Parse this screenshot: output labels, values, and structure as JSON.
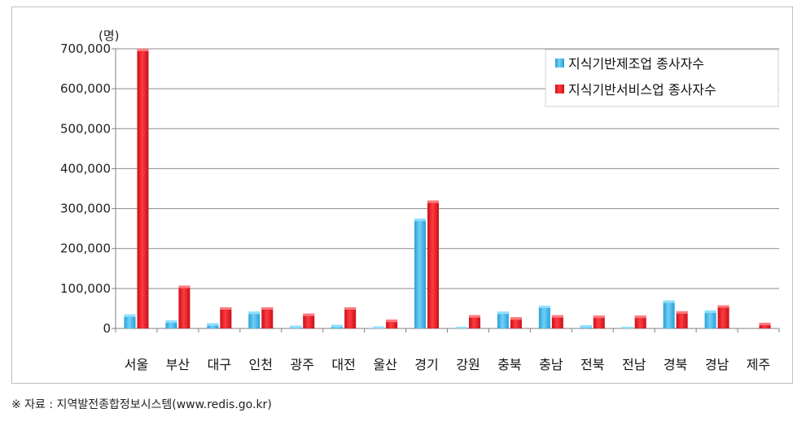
{
  "chart_data": {
    "type": "bar",
    "unit_label": "(명)",
    "categories": [
      "서울",
      "부산",
      "대구",
      "인천",
      "광주",
      "대전",
      "울산",
      "경기",
      "강원",
      "충북",
      "충남",
      "전북",
      "전남",
      "경북",
      "경남",
      "제주"
    ],
    "series": [
      {
        "name": "지식기반제조업 종사자수",
        "color": "#3fb4e6",
        "values": [
          35000,
          20000,
          13000,
          42000,
          7000,
          9000,
          5000,
          275000,
          4000,
          42000,
          57000,
          8000,
          4000,
          70000,
          45000,
          0
        ]
      },
      {
        "name": "지식기반서비스업 종사자수",
        "color": "#e8212a",
        "values": [
          700000,
          107000,
          53000,
          53000,
          37000,
          53000,
          22000,
          320000,
          33000,
          28000,
          33000,
          32000,
          32000,
          43000,
          58000,
          14000
        ]
      }
    ],
    "ylim": [
      0,
      700000
    ],
    "yticks": [
      "0",
      "100,000",
      "200,000",
      "300,000",
      "400,000",
      "500,000",
      "600,000",
      "700,000"
    ],
    "grid": true,
    "legend_position": "top-right"
  },
  "source_note": "※ 자료 : 지역발전종합정보시스템(www.redis.go.kr)"
}
